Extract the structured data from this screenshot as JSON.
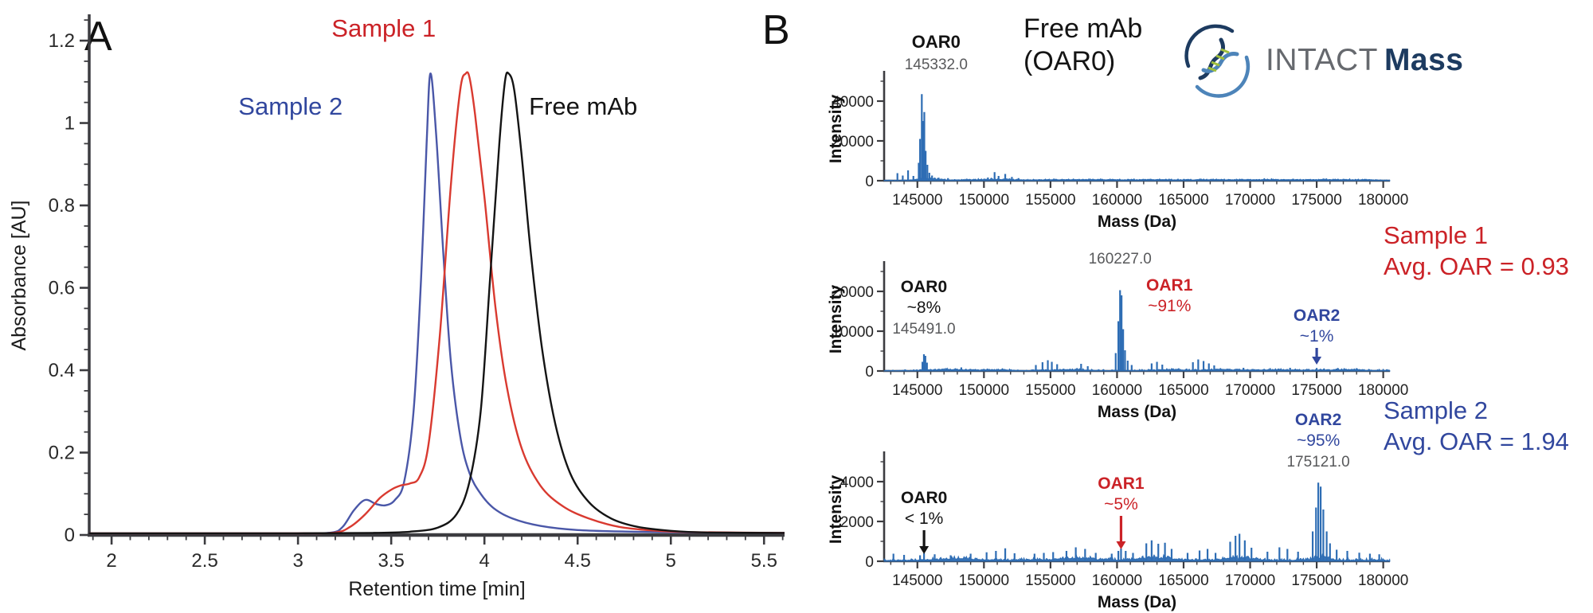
{
  "figure": {
    "panelA_label": "A",
    "panelB_label": "B",
    "freeMab_line1": "Free mAb",
    "freeMab_line2": "(OAR0)",
    "logo_word1": "INTACT",
    "logo_word2": "Mass",
    "sample1_line1": "Sample 1",
    "sample1_line2": "Avg. OAR = 0.93",
    "sample2_line1": "Sample 2",
    "sample2_line2": "Avg. OAR = 1.94"
  },
  "colors": {
    "red_text": "#cb2227",
    "blue_text": "#31479e",
    "curve_red": "#d93a30",
    "curve_blue": "#4a57a8",
    "curve_black": "#141414",
    "spectrum_blue": "#2e6db4",
    "axis": "#3c3c40",
    "gray_label": "#58595b",
    "logo_navy": "#1d3b60",
    "logo_blue": "#4d84b9",
    "logo_green": "#9fbf3b",
    "logo_gray": "#66696e"
  },
  "chart_data": [
    {
      "id": "chromatogram",
      "type": "line",
      "title": "",
      "xlabel": "Retention time [min]",
      "ylabel": "Absorbance [AU]",
      "xlim": [
        1.88,
        5.61
      ],
      "ylim": [
        0,
        1.26
      ],
      "xticks": [
        2,
        2.5,
        3,
        3.5,
        4,
        4.5,
        5,
        5.5
      ],
      "yticks": [
        0,
        0.2,
        0.4,
        0.6,
        0.8,
        1,
        1.2
      ],
      "x_minor": 0.1,
      "y_minor": 0.05,
      "grid": false,
      "legend": "in-plot labels",
      "series": [
        {
          "name": "Sample 2",
          "color": "#4a57a8",
          "peak_time": 3.71,
          "peak_height": 1.12,
          "x": [
            1.88,
            2.5,
            3.0,
            3.18,
            3.24,
            3.3,
            3.36,
            3.42,
            3.47,
            3.52,
            3.57,
            3.62,
            3.66,
            3.69,
            3.71,
            3.74,
            3.78,
            3.82,
            3.87,
            3.92,
            3.98,
            4.05,
            4.15,
            4.3,
            4.5,
            4.8,
            5.2,
            5.61
          ],
          "y": [
            0.004,
            0.004,
            0.004,
            0.006,
            0.02,
            0.06,
            0.085,
            0.075,
            0.072,
            0.085,
            0.13,
            0.3,
            0.62,
            0.95,
            1.12,
            0.98,
            0.68,
            0.42,
            0.24,
            0.15,
            0.1,
            0.065,
            0.04,
            0.022,
            0.012,
            0.008,
            0.006,
            0.005
          ]
        },
        {
          "name": "Sample 1",
          "color": "#d93a30",
          "peak_time": 3.92,
          "peak_height": 1.12,
          "x": [
            1.88,
            2.5,
            3.0,
            3.2,
            3.28,
            3.36,
            3.44,
            3.5,
            3.55,
            3.6,
            3.65,
            3.7,
            3.76,
            3.82,
            3.87,
            3.9,
            3.92,
            3.95,
            4.0,
            4.06,
            4.12,
            4.2,
            4.3,
            4.42,
            4.56,
            4.72,
            4.9,
            5.1,
            5.61
          ],
          "y": [
            0.004,
            0.004,
            0.004,
            0.006,
            0.02,
            0.05,
            0.09,
            0.11,
            0.12,
            0.125,
            0.14,
            0.22,
            0.48,
            0.85,
            1.08,
            1.12,
            1.11,
            1.02,
            0.82,
            0.55,
            0.36,
            0.21,
            0.12,
            0.07,
            0.04,
            0.02,
            0.011,
            0.007,
            0.005
          ]
        },
        {
          "name": "Free mAb",
          "color": "#141414",
          "peak_time": 4.13,
          "peak_height": 1.12,
          "x": [
            1.88,
            2.5,
            3.0,
            3.4,
            3.6,
            3.75,
            3.85,
            3.92,
            3.98,
            4.03,
            4.08,
            4.11,
            4.13,
            4.16,
            4.2,
            4.25,
            4.31,
            4.38,
            4.46,
            4.56,
            4.68,
            4.82,
            5.0,
            5.2,
            5.61
          ],
          "y": [
            0.004,
            0.004,
            0.004,
            0.005,
            0.008,
            0.018,
            0.05,
            0.13,
            0.3,
            0.62,
            0.95,
            1.1,
            1.12,
            1.08,
            0.92,
            0.68,
            0.45,
            0.27,
            0.15,
            0.08,
            0.04,
            0.02,
            0.01,
            0.006,
            0.005
          ]
        }
      ],
      "labels": [
        {
          "text": "Sample 1",
          "color": "#cb2227",
          "x": 3.46,
          "y": 1.21
        },
        {
          "text": "Sample 2",
          "color": "#31479e",
          "x": 2.96,
          "y": 1.02
        },
        {
          "text": "Free mAb",
          "color": "#141414",
          "x": 4.53,
          "y": 1.02
        }
      ]
    },
    {
      "id": "spectrum-free-mab",
      "type": "line",
      "subtitle": "Free mAb (OAR0)",
      "xlabel": "Mass (Da)",
      "ylabel": "Intensity",
      "xlim": [
        142500,
        180500
      ],
      "ylim": [
        0,
        52000
      ],
      "xticks": [
        145000,
        150000,
        155000,
        160000,
        165000,
        170000,
        175000,
        180000
      ],
      "yticks": [
        0,
        20000,
        40000
      ],
      "x_minor": 1000,
      "main_peak": {
        "mass": 145332.0,
        "intensity": 43500,
        "label": "OAR0"
      },
      "sticks": [
        [
          143500,
          3800
        ],
        [
          143900,
          2600
        ],
        [
          144300,
          5200
        ],
        [
          144700,
          2400
        ],
        [
          145100,
          9000
        ],
        [
          145200,
          21000
        ],
        [
          145332,
          43500
        ],
        [
          145430,
          30000
        ],
        [
          145520,
          34500
        ],
        [
          145620,
          15000
        ],
        [
          145750,
          8000
        ],
        [
          145900,
          4000
        ],
        [
          146100,
          2600
        ],
        [
          146600,
          1500
        ],
        [
          147300,
          1300
        ],
        [
          150300,
          1600
        ],
        [
          150800,
          4300
        ],
        [
          151100,
          2400
        ],
        [
          151600,
          3400
        ],
        [
          152100,
          1900
        ],
        [
          152600,
          1300
        ]
      ],
      "noise": {
        "seed": 11,
        "level": 650,
        "bumps": [
          [
            145800,
            900,
            1500
          ],
          [
            148500,
            1800,
            500
          ],
          [
            151300,
            1500,
            800
          ],
          [
            155800,
            2500,
            500
          ],
          [
            158900,
            1800,
            450
          ],
          [
            162500,
            2200,
            500
          ],
          [
            166500,
            2500,
            450
          ],
          [
            170500,
            2500,
            420
          ],
          [
            174000,
            2500,
            420
          ],
          [
            177500,
            2500,
            450
          ]
        ]
      },
      "annotations": [
        {
          "mass": 145332,
          "dx": 18,
          "top": 18,
          "lines": [
            {
              "text": "OAR0",
              "bold": true,
              "color": "#141414",
              "size": 22
            },
            {
              "text": "145332.0",
              "color": "#58595b",
              "size": 19
            }
          ]
        }
      ]
    },
    {
      "id": "spectrum-sample1",
      "type": "line",
      "subtitle": "Sample 1, Avg. OAR = 0.93",
      "xlabel": "Mass (Da)",
      "ylabel": "Intensity",
      "xlim": [
        142500,
        180500
      ],
      "ylim": [
        0,
        26000
      ],
      "xticks": [
        145000,
        150000,
        155000,
        160000,
        165000,
        170000,
        175000,
        180000
      ],
      "yticks": [
        0,
        10000,
        20000
      ],
      "x_minor": 1000,
      "species": [
        {
          "label": "OAR0",
          "abundance": "~8%",
          "mass": 145491.0
        },
        {
          "label": "OAR1",
          "abundance": "~91%",
          "mass": 160227.0
        },
        {
          "label": "OAR2",
          "abundance": "~1%",
          "mass": 175000
        }
      ],
      "sticks": [
        [
          145380,
          2300
        ],
        [
          145491,
          4200
        ],
        [
          145600,
          3800
        ],
        [
          145720,
          2100
        ],
        [
          148300,
          900
        ],
        [
          153900,
          1500
        ],
        [
          154400,
          2200
        ],
        [
          154800,
          2700
        ],
        [
          155100,
          2300
        ],
        [
          155500,
          1700
        ],
        [
          157300,
          1800
        ],
        [
          157800,
          1200
        ],
        [
          159900,
          4500
        ],
        [
          160100,
          12500
        ],
        [
          160227,
          20300
        ],
        [
          160340,
          19000
        ],
        [
          160460,
          10500
        ],
        [
          160600,
          5200
        ],
        [
          160800,
          2600
        ],
        [
          161100,
          1500
        ],
        [
          162600,
          1900
        ],
        [
          163000,
          2300
        ],
        [
          163400,
          1600
        ],
        [
          165700,
          2200
        ],
        [
          166100,
          2900
        ],
        [
          166500,
          2500
        ],
        [
          166900,
          1900
        ],
        [
          167300,
          1400
        ],
        [
          169500,
          800
        ],
        [
          171500,
          700
        ],
        [
          173000,
          800
        ],
        [
          175000,
          750
        ],
        [
          176500,
          600
        ],
        [
          178000,
          700
        ]
      ],
      "noise": {
        "seed": 23,
        "level": 430,
        "bumps": [
          [
            147000,
            1500,
            350
          ],
          [
            150500,
            2000,
            300
          ],
          [
            156500,
            1500,
            400
          ],
          [
            164000,
            1500,
            350
          ],
          [
            168000,
            1500,
            350
          ],
          [
            172000,
            2000,
            300
          ],
          [
            177000,
            2200,
            350
          ]
        ]
      },
      "annotations": [
        {
          "mass": 145491,
          "dx": 0,
          "top": 86,
          "lines": [
            {
              "text": "OAR0",
              "bold": true,
              "color": "#141414",
              "size": 21
            },
            {
              "text": "~8%",
              "color": "#141414",
              "size": 21
            },
            {
              "text": "145491.0",
              "color": "#58595b",
              "size": 19
            }
          ]
        },
        {
          "mass": 160227,
          "dx": 0,
          "top": 50,
          "lines": [
            {
              "text": "160227.0",
              "color": "#58595b",
              "size": 19
            }
          ]
        },
        {
          "mass": 160227,
          "dx": 62,
          "top": 84,
          "lines": [
            {
              "text": "OAR1",
              "bold": true,
              "color": "#cb2227",
              "size": 21
            },
            {
              "text": "~91%",
              "color": "#cb2227",
              "size": 21
            }
          ]
        },
        {
          "mass": 175000,
          "dx": 0,
          "top": 122,
          "lines": [
            {
              "text": "OAR2",
              "bold": true,
              "color": "#31479e",
              "size": 21
            },
            {
              "text": "~1%",
              "color": "#31479e",
              "size": 21
            }
          ],
          "arrow": {
            "color": "#31479e",
            "y1": 156,
            "y2": 177
          }
        }
      ]
    },
    {
      "id": "spectrum-sample2",
      "type": "line",
      "subtitle": "Sample 2, Avg. OAR = 1.94",
      "xlabel": "Mass (Da)",
      "ylabel": "Intensity",
      "xlim": [
        142500,
        180500
      ],
      "ylim": [
        0,
        5200
      ],
      "xticks": [
        145000,
        150000,
        155000,
        160000,
        165000,
        170000,
        175000,
        180000
      ],
      "yticks": [
        0,
        2000,
        4000
      ],
      "x_minor": 1000,
      "species": [
        {
          "label": "OAR0",
          "abundance": "< 1%",
          "mass": 145500
        },
        {
          "label": "OAR1",
          "abundance": "~5%",
          "mass": 160300
        },
        {
          "label": "OAR2",
          "abundance": "~95%",
          "mass": 175121.0
        }
      ],
      "sticks": [
        [
          143200,
          380
        ],
        [
          144000,
          320
        ],
        [
          145200,
          300
        ],
        [
          145500,
          400
        ],
        [
          146300,
          350
        ],
        [
          147500,
          300
        ],
        [
          149000,
          380
        ],
        [
          150200,
          450
        ],
        [
          150900,
          520
        ],
        [
          151600,
          650
        ],
        [
          152300,
          400
        ],
        [
          153800,
          380
        ],
        [
          154500,
          420
        ],
        [
          155200,
          460
        ],
        [
          156200,
          520
        ],
        [
          156900,
          700
        ],
        [
          157600,
          620
        ],
        [
          158400,
          420
        ],
        [
          159600,
          380
        ],
        [
          160100,
          520
        ],
        [
          160300,
          640
        ],
        [
          160650,
          520
        ],
        [
          161200,
          420
        ],
        [
          162200,
          900
        ],
        [
          162600,
          1050
        ],
        [
          163100,
          880
        ],
        [
          163600,
          930
        ],
        [
          164100,
          620
        ],
        [
          165300,
          420
        ],
        [
          166200,
          540
        ],
        [
          166800,
          620
        ],
        [
          167400,
          420
        ],
        [
          168500,
          980
        ],
        [
          168900,
          1280
        ],
        [
          169200,
          1380
        ],
        [
          169600,
          1050
        ],
        [
          170100,
          680
        ],
        [
          171300,
          480
        ],
        [
          172200,
          700
        ],
        [
          172800,
          620
        ],
        [
          173600,
          480
        ],
        [
          174700,
          1500
        ],
        [
          174950,
          2700
        ],
        [
          175121,
          3950
        ],
        [
          175300,
          3750
        ],
        [
          175500,
          2600
        ],
        [
          175750,
          1500
        ],
        [
          176000,
          900
        ],
        [
          176500,
          580
        ],
        [
          177300,
          520
        ],
        [
          178200,
          430
        ],
        [
          179000,
          380
        ],
        [
          179700,
          350
        ]
      ],
      "noise": {
        "seed": 5,
        "level": 190,
        "bumps": [
          [
            148000,
            2000,
            120
          ],
          [
            157000,
            2000,
            150
          ],
          [
            163000,
            1800,
            180
          ],
          [
            169000,
            1500,
            200
          ],
          [
            175300,
            900,
            250
          ]
        ]
      },
      "annotations": [
        {
          "mass": 145500,
          "dx": 0,
          "top": 112,
          "lines": [
            {
              "text": "OAR0",
              "bold": true,
              "color": "#141414",
              "size": 21
            },
            {
              "text": "< 1%",
              "color": "#141414",
              "size": 21
            }
          ],
          "arrow": {
            "color": "#141414",
            "y1": 146,
            "y2": 176
          }
        },
        {
          "mass": 160300,
          "dx": 0,
          "top": 94,
          "lines": [
            {
              "text": "OAR1",
              "bold": true,
              "color": "#cb2227",
              "size": 21
            },
            {
              "text": "~5%",
              "color": "#cb2227",
              "size": 21
            }
          ],
          "arrow": {
            "color": "#cb2227",
            "y1": 128,
            "y2": 170
          }
        },
        {
          "mass": 175121,
          "dx": 0,
          "top": 14,
          "lines": [
            {
              "text": "OAR2",
              "bold": true,
              "color": "#31479e",
              "size": 21
            },
            {
              "text": "~95%",
              "color": "#31479e",
              "size": 21
            },
            {
              "text": "175121.0",
              "color": "#58595b",
              "size": 19
            }
          ]
        }
      ]
    }
  ]
}
